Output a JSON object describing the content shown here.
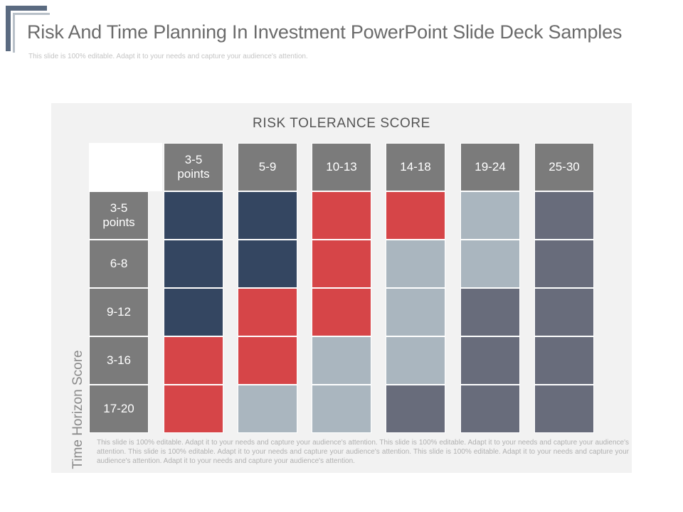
{
  "slide": {
    "title": "Risk And Time Planning In Investment PowerPoint Slide Deck Samples",
    "subtitle": "This slide is 100% editable. Adapt it to your needs and capture your audience's attention.",
    "footer_note": "This slide is 100% editable. Adapt it to your needs and capture your audience's attention. This slide is 100% editable. Adapt it to your needs and capture your audience's attention. This slide is 100% editable. Adapt it to your needs and capture your audience's attention. This slide is 100% editable. Adapt it to your needs and capture your audience's attention. Adapt it to your needs and capture your audience's attention."
  },
  "matrix": {
    "column_axis_title": "RISK TOLERANCE  SCORE",
    "row_axis_title": "Time Horizon Score",
    "columns": [
      "3-5 points",
      "5-9",
      "10-13",
      "14-18",
      "19-24",
      "25-30"
    ],
    "rows": [
      "3-5 points",
      "6-8",
      "9-12",
      "3-16",
      "17-20"
    ],
    "cells": [
      [
        "navy",
        "navy",
        "red",
        "red",
        "light",
        "slate"
      ],
      [
        "navy",
        "navy",
        "red",
        "light",
        "light",
        "slate"
      ],
      [
        "navy",
        "red",
        "red",
        "light",
        "slate",
        "slate"
      ],
      [
        "red",
        "red",
        "light",
        "light",
        "slate",
        "slate"
      ],
      [
        "red",
        "light",
        "light",
        "slate",
        "slate",
        "slate"
      ]
    ],
    "colors": {
      "navy": "#344661",
      "red": "#d64548",
      "light": "#aab6bf",
      "slate": "#686c7b",
      "header": "#7b7b7b"
    }
  }
}
